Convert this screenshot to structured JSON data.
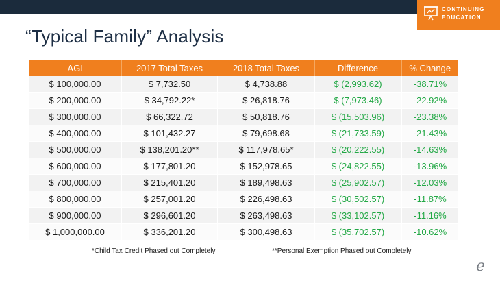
{
  "badge": {
    "line1": "CONTINUING",
    "line2": "EDUCATION",
    "icon": "presentation-board-icon"
  },
  "title": "“Typical Family” Analysis",
  "table": {
    "headers": [
      "AGI",
      "2017 Total Taxes",
      "2018 Total Taxes",
      "Difference",
      "% Change"
    ],
    "rows": [
      [
        "$ 100,000.00",
        "$ 7,732.50",
        "$ 4,738.88",
        "$ (2,993.62)",
        "-38.71%"
      ],
      [
        "$ 200,000.00",
        "$ 34,792.22*",
        "$ 26,818.76",
        "$ (7,973.46)",
        "-22.92%"
      ],
      [
        "$ 300,000.00",
        "$ 66,322.72",
        "$ 50,818.76",
        "$ (15,503.96)",
        "-23.38%"
      ],
      [
        "$ 400,000.00",
        "$ 101,432.27",
        "$ 79,698.68",
        "$ (21,733.59)",
        "-21.43%"
      ],
      [
        "$ 500,000.00",
        "$ 138,201.20**",
        "$ 117,978.65*",
        "$ (20,222.55)",
        "-14.63%"
      ],
      [
        "$ 600,000.00",
        "$ 177,801.20",
        "$ 152,978.65",
        "$ (24,822.55)",
        "-13.96%"
      ],
      [
        "$ 700,000.00",
        "$ 215,401.20",
        "$ 189,498.63",
        "$ (25,902.57)",
        "-12.03%"
      ],
      [
        "$ 800,000.00",
        "$ 257,001.20",
        "$ 226,498.63",
        "$ (30,502.57)",
        "-11.87%"
      ],
      [
        "$ 900,000.00",
        "$ 296,601.20",
        "$ 263,498.63",
        "$ (33,102.57)",
        "-11.16%"
      ],
      [
        "$ 1,000,000.00",
        "$ 336,201.20",
        "$ 300,498.63",
        "$ (35,702.57)",
        "-10.62%"
      ]
    ]
  },
  "notes": {
    "left": "*Child Tax Credit Phased out Completely",
    "right": "**Personal Exemption Phased out Completely"
  },
  "logo": "e",
  "colors": {
    "header_bg": "#f07f1e",
    "topbar": "#1b2b3c",
    "accent_green": "#22a845",
    "title": "#1e2f45"
  }
}
